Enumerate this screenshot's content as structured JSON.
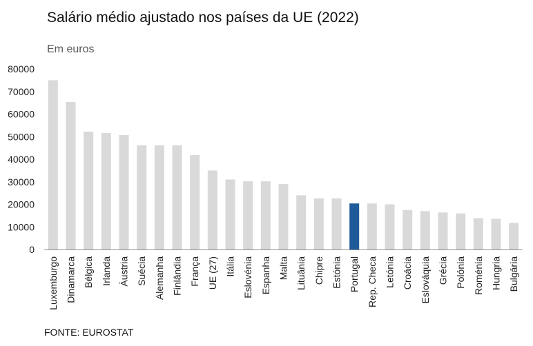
{
  "title": "Salário médio ajustado nos países da UE (2022)",
  "subtitle": "Em euros",
  "source": "FONTE: EUROSTAT",
  "colors": {
    "default_bar": "#d9d9d9",
    "highlight_bar": "#1f5a99",
    "axis": "#8c8c8c"
  },
  "chart_data": {
    "type": "bar",
    "title": "Salário médio ajustado nos países da UE (2022)",
    "subtitle": "Em euros",
    "xlabel": "",
    "ylabel": "",
    "ylim": [
      0,
      80000
    ],
    "yticks": [
      0,
      10000,
      20000,
      30000,
      40000,
      50000,
      60000,
      70000,
      80000
    ],
    "grid": false,
    "highlight": "Portugal",
    "categories": [
      "Luxemburgo",
      "Dinamarca",
      "Bélgica",
      "Irlanda",
      "Áustria",
      "Suécia",
      "Alemanha",
      "Finlândia",
      "França",
      "UE (27)",
      "Itália",
      "Eslovénia",
      "Espanha",
      "Malta",
      "Lituânia",
      "Chipre",
      "Estónia",
      "Portugal",
      "Rep. Checa",
      "Letónia",
      "Croácia",
      "Eslováquia",
      "Grécia",
      "Polónia",
      "Roménia",
      "Hungria",
      "Bulgária"
    ],
    "values": [
      75000,
      65300,
      52200,
      51600,
      50700,
      46200,
      46200,
      46200,
      41800,
      35000,
      31000,
      30200,
      30200,
      29000,
      24000,
      22700,
      22700,
      20400,
      20400,
      20000,
      17500,
      17000,
      16400,
      16000,
      13900,
      13600,
      11800
    ]
  }
}
